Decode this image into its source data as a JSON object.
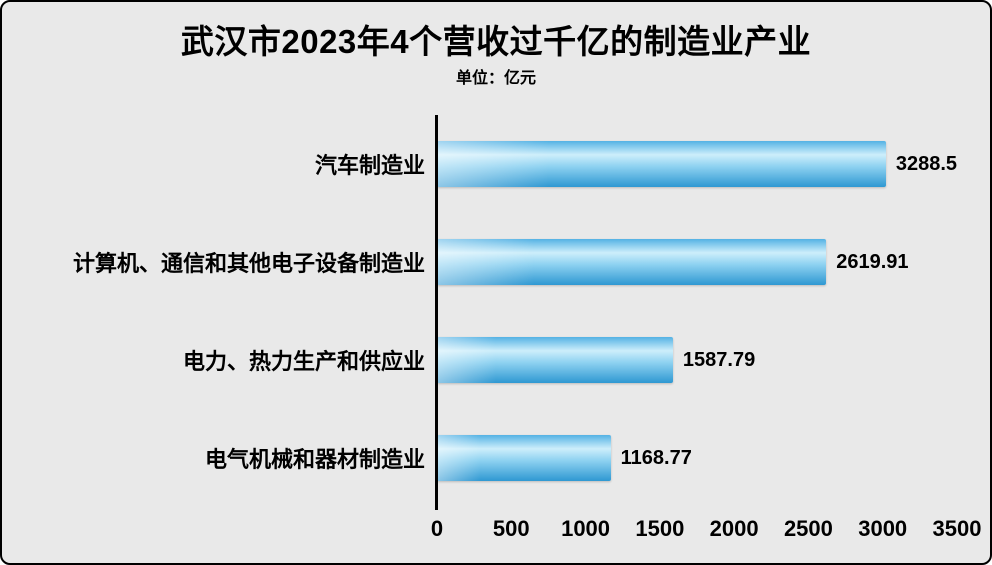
{
  "chart_data": {
    "type": "bar",
    "orientation": "horizontal",
    "title": "武汉市2023年4个营收过千亿的制造业产业",
    "unit_label": "单位：亿元",
    "categories": [
      "汽车制造业",
      "计算机、通信和其他电子设备制造业",
      "电力、热力生产和供应业",
      "电气机械和器材制造业"
    ],
    "values": [
      3288.5,
      2619.91,
      1587.79,
      1168.77
    ],
    "value_labels": [
      "3288.5",
      "2619.91",
      "1587.79",
      "1168.77"
    ],
    "xlabel": "",
    "ylabel": "",
    "xlim": [
      0,
      3500
    ],
    "x_ticks": [
      0,
      500,
      1000,
      1500,
      2000,
      2500,
      3000,
      3500
    ],
    "grid": false,
    "legend": false,
    "colors": {
      "background": "#e9e9e9",
      "axis": "#000000",
      "text": "#000000",
      "bar_top": "#54b2e4",
      "bar_light": "#cdeefb",
      "bar_mid": "#8fd2f1",
      "bar_bottom": "#2f98d2"
    }
  }
}
